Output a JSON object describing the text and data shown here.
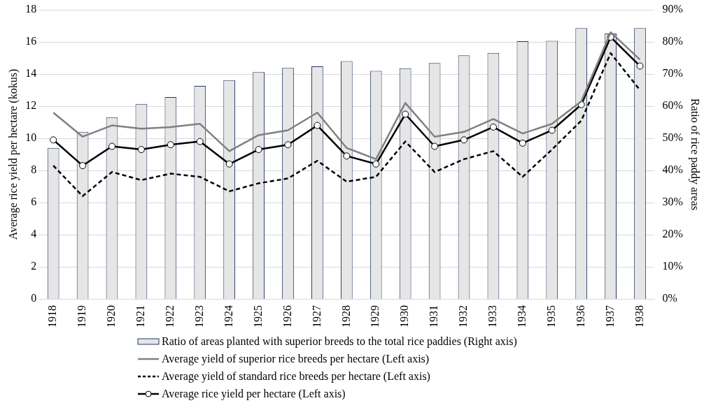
{
  "chart_data": {
    "type": "bar",
    "ylabel": "Average rice yield per hectare (kokus)",
    "y2label": "Ratio of rice paddy areas",
    "categories": [
      "1918",
      "1919",
      "1920",
      "1921",
      "1922",
      "1923",
      "1924",
      "1925",
      "1926",
      "1927",
      "1928",
      "1929",
      "1930",
      "1931",
      "1932",
      "1933",
      "1934",
      "1935",
      "1936",
      "1937",
      "1938"
    ],
    "series": [
      {
        "name": "Ratio of areas planted with superior breeds to the total rice paddies (Right axis)",
        "axis": "y2",
        "color": "#e7e6e6",
        "values": [
          47,
          52,
          56.6,
          60.7,
          62.8,
          66.3,
          68.1,
          70.6,
          71.9,
          72.4,
          74,
          71,
          71.8,
          73.4,
          75.8,
          76.6,
          80.2,
          80.3,
          84.3,
          82.6,
          84.3
        ]
      },
      {
        "name": "Average yield of superior rice breeds per hectare (Left axis)",
        "type": "line",
        "color": "#808080",
        "marker": "none",
        "line_style": "solid",
        "values": [
          11.6,
          10.1,
          10.8,
          10.6,
          10.7,
          10.9,
          9.2,
          10.2,
          10.5,
          11.6,
          9.4,
          8.7,
          12.2,
          10.1,
          10.4,
          11.2,
          10.3,
          10.9,
          12.3,
          16.6,
          14.9
        ]
      },
      {
        "name": "Average yield of standard rice breeds per hectare (Left axis)",
        "type": "line",
        "color": "#000000",
        "marker": "none",
        "line_style": "dashed",
        "values": [
          8.3,
          6.4,
          7.9,
          7.4,
          7.8,
          7.6,
          6.7,
          7.2,
          7.5,
          8.6,
          7.3,
          7.6,
          9.8,
          7.9,
          8.7,
          9.2,
          7.6,
          9.3,
          11.1,
          15.3,
          13
        ]
      },
      {
        "name": "Average rice yield per hectare (Left axis)",
        "type": "line",
        "color": "#000000",
        "marker": "circle",
        "line_style": "solid",
        "values": [
          9.9,
          8.3,
          9.5,
          9.3,
          9.6,
          9.8,
          8.4,
          9.3,
          9.6,
          10.8,
          8.9,
          8.4,
          11.5,
          9.5,
          9.9,
          10.7,
          9.7,
          10.5,
          12.1,
          16.3,
          14.5
        ]
      }
    ],
    "ylim": [
      0,
      18
    ],
    "yticks": [
      0,
      2,
      4,
      6,
      8,
      10,
      12,
      14,
      16,
      18
    ],
    "y2lim": [
      0,
      90
    ],
    "y2ticks": [
      {
        "value": 0,
        "label": "0%"
      },
      {
        "value": 10,
        "label": "10%"
      },
      {
        "value": 20,
        "label": "20%"
      },
      {
        "value": 30,
        "label": "30%"
      },
      {
        "value": 40,
        "label": "40%"
      },
      {
        "value": 50,
        "label": "50%"
      },
      {
        "value": 60,
        "label": "60%"
      },
      {
        "value": 70,
        "label": "70%"
      },
      {
        "value": 80,
        "label": "80%"
      },
      {
        "value": 90,
        "label": "90%"
      }
    ],
    "grid": "y",
    "legend": "bottom"
  }
}
